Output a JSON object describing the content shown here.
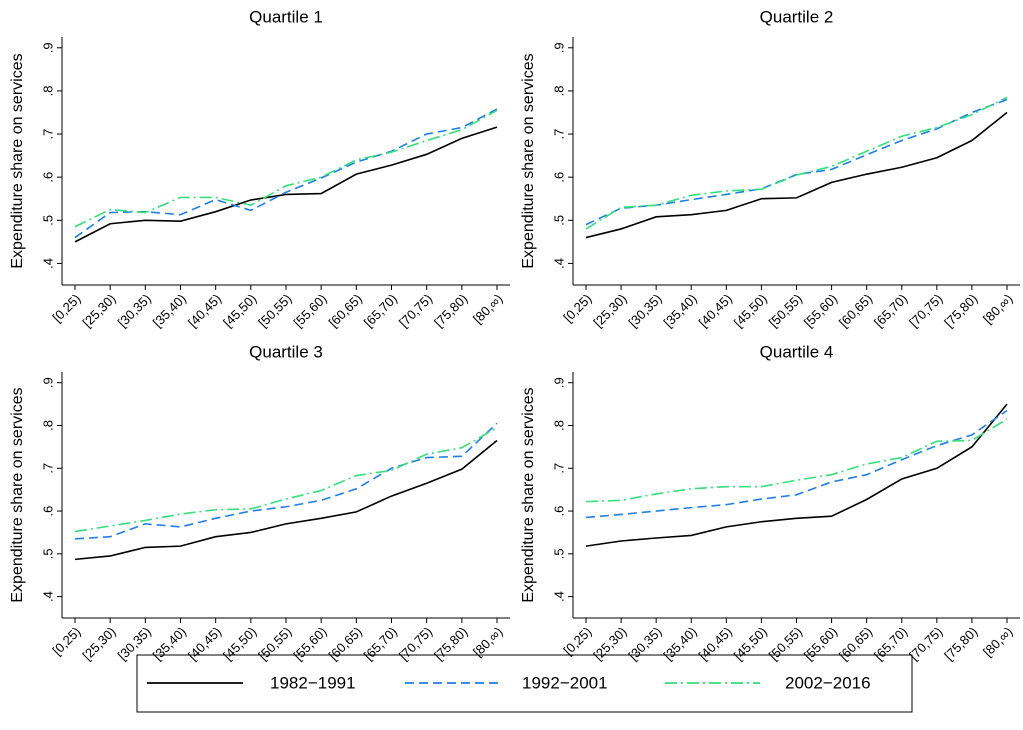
{
  "chart_data": [
    {
      "type": "line",
      "title": "Quartile 1",
      "y_label": "Expenditure share on services",
      "categories": [
        "[0,25)",
        "[25,30)",
        "[30,35)",
        "[35,40)",
        "[40,45)",
        "[45,50)",
        "[50,55)",
        "[55,60)",
        "[60,65)",
        "[65,70)",
        "[70,75)",
        "[75,80)",
        "[80,∞)"
      ],
      "series": [
        {
          "name": "1982−1991",
          "color": "#000000",
          "linestyle": "solid",
          "values": [
            0.45,
            0.492,
            0.5,
            0.498,
            0.52,
            0.547,
            0.56,
            0.562,
            0.607,
            0.628,
            0.653,
            0.69,
            0.716
          ]
        },
        {
          "name": "1992−2001",
          "color": "#1e7fe6",
          "linestyle": "dashed",
          "values": [
            0.46,
            0.518,
            0.52,
            0.513,
            0.548,
            0.523,
            0.565,
            0.598,
            0.635,
            0.66,
            0.7,
            0.715,
            0.758
          ]
        },
        {
          "name": "2002−2016",
          "color": "#33e07a",
          "linestyle": "dashdot",
          "values": [
            0.485,
            0.525,
            0.518,
            0.553,
            0.553,
            0.535,
            0.58,
            0.6,
            0.64,
            0.658,
            0.685,
            0.71,
            0.755
          ]
        }
      ],
      "ylim": [
        0.35,
        0.925
      ],
      "yticks": [
        {
          "value": 0.4,
          "label": ".4"
        },
        {
          "value": 0.5,
          "label": ".5"
        },
        {
          "value": 0.6,
          "label": ".6"
        },
        {
          "value": 0.7,
          "label": ".7"
        },
        {
          "value": 0.8,
          "label": ".8"
        },
        {
          "value": 0.9,
          "label": ".9"
        }
      ],
      "grid": false
    },
    {
      "type": "line",
      "title": "Quartile 2",
      "y_label": "Expenditure share on services",
      "categories": [
        "[0,25)",
        "[25,30)",
        "[30,35)",
        "[35,40)",
        "[40,45)",
        "[45,50)",
        "[50,55)",
        "[55,60)",
        "[60,65)",
        "[65,70)",
        "[70,75)",
        "[75,80)",
        "[80,∞)"
      ],
      "series": [
        {
          "name": "1982−1991",
          "color": "#000000",
          "linestyle": "solid",
          "values": [
            0.46,
            0.48,
            0.508,
            0.513,
            0.523,
            0.55,
            0.552,
            0.588,
            0.607,
            0.623,
            0.645,
            0.685,
            0.75
          ]
        },
        {
          "name": "1992−2001",
          "color": "#1e7fe6",
          "linestyle": "dashed",
          "values": [
            0.49,
            0.528,
            0.535,
            0.548,
            0.56,
            0.573,
            0.606,
            0.618,
            0.652,
            0.685,
            0.712,
            0.75,
            0.78
          ]
        },
        {
          "name": "2002−2016",
          "color": "#33e07a",
          "linestyle": "dashdot",
          "values": [
            0.48,
            0.53,
            0.535,
            0.558,
            0.568,
            0.572,
            0.605,
            0.625,
            0.66,
            0.695,
            0.715,
            0.745,
            0.785
          ]
        }
      ],
      "ylim": [
        0.35,
        0.925
      ],
      "yticks": [
        {
          "value": 0.4,
          "label": ".4"
        },
        {
          "value": 0.5,
          "label": ".5"
        },
        {
          "value": 0.6,
          "label": ".6"
        },
        {
          "value": 0.7,
          "label": ".7"
        },
        {
          "value": 0.8,
          "label": ".8"
        },
        {
          "value": 0.9,
          "label": ".9"
        }
      ],
      "grid": false
    },
    {
      "type": "line",
      "title": "Quartile 3",
      "y_label": "Expenditure share on services",
      "categories": [
        "[0,25)",
        "[25,30)",
        "[30,35)",
        "[35,40)",
        "[40,45)",
        "[45,50)",
        "[50,55)",
        "[55,60)",
        "[60,65)",
        "[65,70)",
        "[70,75)",
        "[75,80)",
        "[80,∞)"
      ],
      "series": [
        {
          "name": "1982−1991",
          "color": "#000000",
          "linestyle": "solid",
          "values": [
            0.487,
            0.495,
            0.515,
            0.518,
            0.54,
            0.55,
            0.57,
            0.583,
            0.598,
            0.635,
            0.665,
            0.698,
            0.765
          ]
        },
        {
          "name": "1992−2001",
          "color": "#1e7fe6",
          "linestyle": "dashed",
          "values": [
            0.535,
            0.54,
            0.57,
            0.563,
            0.583,
            0.6,
            0.61,
            0.625,
            0.652,
            0.7,
            0.725,
            0.728,
            0.805
          ]
        },
        {
          "name": "2002−2016",
          "color": "#33e07a",
          "linestyle": "dashdot",
          "values": [
            0.552,
            0.565,
            0.578,
            0.593,
            0.603,
            0.605,
            0.628,
            0.648,
            0.683,
            0.695,
            0.733,
            0.748,
            0.795
          ]
        }
      ],
      "ylim": [
        0.35,
        0.925
      ],
      "yticks": [
        {
          "value": 0.4,
          "label": ".4"
        },
        {
          "value": 0.5,
          "label": ".5"
        },
        {
          "value": 0.6,
          "label": ".6"
        },
        {
          "value": 0.7,
          "label": ".7"
        },
        {
          "value": 0.8,
          "label": ".8"
        },
        {
          "value": 0.9,
          "label": ".9"
        }
      ],
      "grid": false
    },
    {
      "type": "line",
      "title": "Quartile 4",
      "y_label": "Expenditure share on services",
      "categories": [
        "[0,25)",
        "[25,30)",
        "[30,35)",
        "[35,40)",
        "[40,45)",
        "[45,50)",
        "[50,55)",
        "[55,60)",
        "[60,65)",
        "[65,70)",
        "[70,75)",
        "[75,80)",
        "[80,∞)"
      ],
      "series": [
        {
          "name": "1982−1991",
          "color": "#000000",
          "linestyle": "solid",
          "values": [
            0.518,
            0.53,
            0.537,
            0.543,
            0.563,
            0.575,
            0.583,
            0.588,
            0.627,
            0.675,
            0.7,
            0.75,
            0.85
          ]
        },
        {
          "name": "1992−2001",
          "color": "#1e7fe6",
          "linestyle": "dashed",
          "values": [
            0.585,
            0.592,
            0.6,
            0.608,
            0.615,
            0.628,
            0.638,
            0.668,
            0.685,
            0.72,
            0.753,
            0.778,
            0.835
          ]
        },
        {
          "name": "2002−2016",
          "color": "#33e07a",
          "linestyle": "dashdot",
          "values": [
            0.622,
            0.625,
            0.64,
            0.652,
            0.657,
            0.657,
            0.672,
            0.685,
            0.71,
            0.725,
            0.763,
            0.765,
            0.815
          ]
        }
      ],
      "ylim": [
        0.35,
        0.925
      ],
      "yticks": [
        {
          "value": 0.4,
          "label": ".4"
        },
        {
          "value": 0.5,
          "label": ".5"
        },
        {
          "value": 0.6,
          "label": ".6"
        },
        {
          "value": 0.7,
          "label": ".7"
        },
        {
          "value": 0.8,
          "label": ".8"
        },
        {
          "value": 0.9,
          "label": ".9"
        }
      ],
      "grid": false
    }
  ]
}
